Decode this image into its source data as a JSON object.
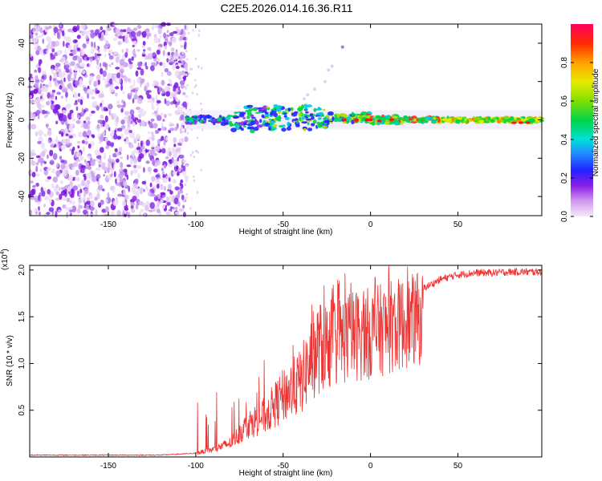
{
  "title": "C2E5.2026.014.16.36.R11",
  "chart_data": [
    {
      "type": "heatmap",
      "xlabel": "Height of straight line (km)",
      "ylabel": "Frequency (Hz)",
      "xlim": [
        -195,
        98
      ],
      "ylim": [
        -50,
        50
      ],
      "xticks": [
        -150,
        -100,
        -50,
        0,
        50
      ],
      "yticks": [
        -40,
        -20,
        0,
        20,
        40
      ],
      "colorbar": {
        "label": "Normalized spectral amplitude",
        "range": [
          0.0,
          1.0
        ],
        "ticks": [
          0.0,
          0.2,
          0.4,
          0.6,
          0.8
        ]
      },
      "description": "Diffuse purple noise for heights below about -105 km; a narrow band near 0 Hz from about -105 km to 98 km, brighter (green to red) toward the right, with spread up to ~8 Hz around -75 to -30 km and isolated points near 38 Hz at -16 km."
    },
    {
      "type": "line",
      "color": "#ee3333",
      "xlabel": "Height of straight line (km)",
      "ylabel": "SNR (10 * v/v)",
      "yscale_label": "(x10",
      "yscale_exp": "4",
      "xlim": [
        -195,
        98
      ],
      "ylim": [
        0,
        2.05
      ],
      "xticks": [
        -150,
        -100,
        -50,
        0,
        50
      ],
      "yticks": [
        0.5,
        1.0,
        1.5,
        2.0
      ],
      "ytick_labels": [
        "0.5",
        "1.0",
        "1.5",
        "2.0"
      ],
      "envelope_x": [
        -195,
        -120,
        -100,
        -90,
        -80,
        -70,
        -60,
        -50,
        -40,
        -35,
        -30,
        -20,
        -10,
        0,
        10,
        20,
        30,
        40,
        50,
        60,
        70,
        80,
        90,
        98
      ],
      "envelope_y": [
        0.02,
        0.02,
        0.04,
        0.08,
        0.15,
        0.35,
        0.45,
        0.65,
        0.8,
        1.0,
        1.2,
        1.35,
        1.45,
        1.5,
        1.6,
        1.7,
        1.8,
        1.9,
        1.95,
        1.97,
        1.97,
        1.98,
        1.98,
        1.98
      ]
    }
  ]
}
